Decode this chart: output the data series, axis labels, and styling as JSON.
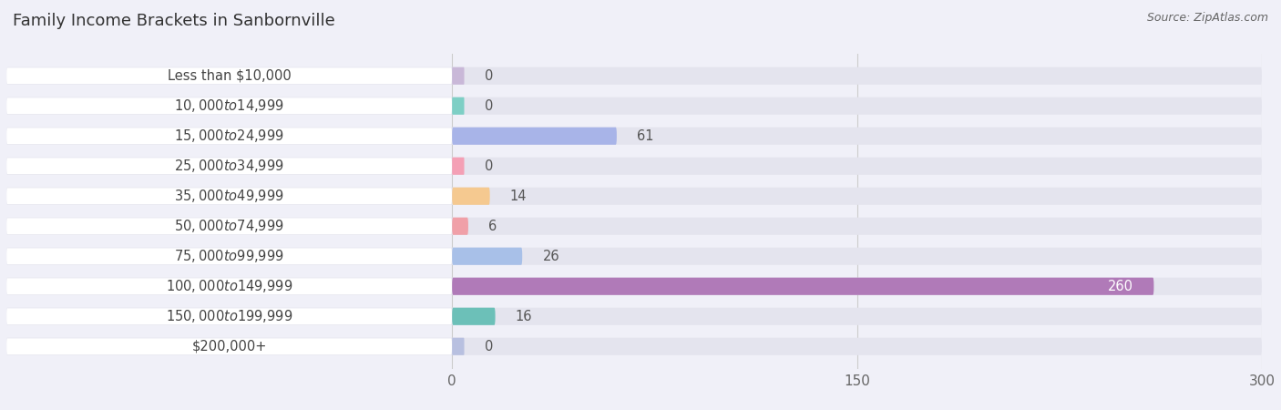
{
  "title": "Family Income Brackets in Sanbornville",
  "source": "Source: ZipAtlas.com",
  "categories": [
    "Less than $10,000",
    "$10,000 to $14,999",
    "$15,000 to $24,999",
    "$25,000 to $34,999",
    "$35,000 to $49,999",
    "$50,000 to $74,999",
    "$75,000 to $99,999",
    "$100,000 to $149,999",
    "$150,000 to $199,999",
    "$200,000+"
  ],
  "values": [
    0,
    0,
    61,
    0,
    14,
    6,
    26,
    260,
    16,
    0
  ],
  "bar_colors": [
    "#c9b8d8",
    "#7ecfc5",
    "#a8b4e8",
    "#f4a0b5",
    "#f5c990",
    "#f0a0a8",
    "#a8c0e8",
    "#b07ab8",
    "#6cc0b8",
    "#b8c0e0"
  ],
  "value_label_color_inside": "#ffffff",
  "value_label_color_outside": "#555555",
  "background_color": "#f0f0f8",
  "bar_bg_color": "#e4e4ee",
  "label_bg_color": "#ffffff",
  "xlim_data": [
    0,
    300
  ],
  "xlim_display": [
    0,
    310
  ],
  "xticks": [
    0,
    150,
    300
  ],
  "title_fontsize": 13,
  "label_fontsize": 10.5,
  "tick_fontsize": 11,
  "value_fontsize": 10.5
}
